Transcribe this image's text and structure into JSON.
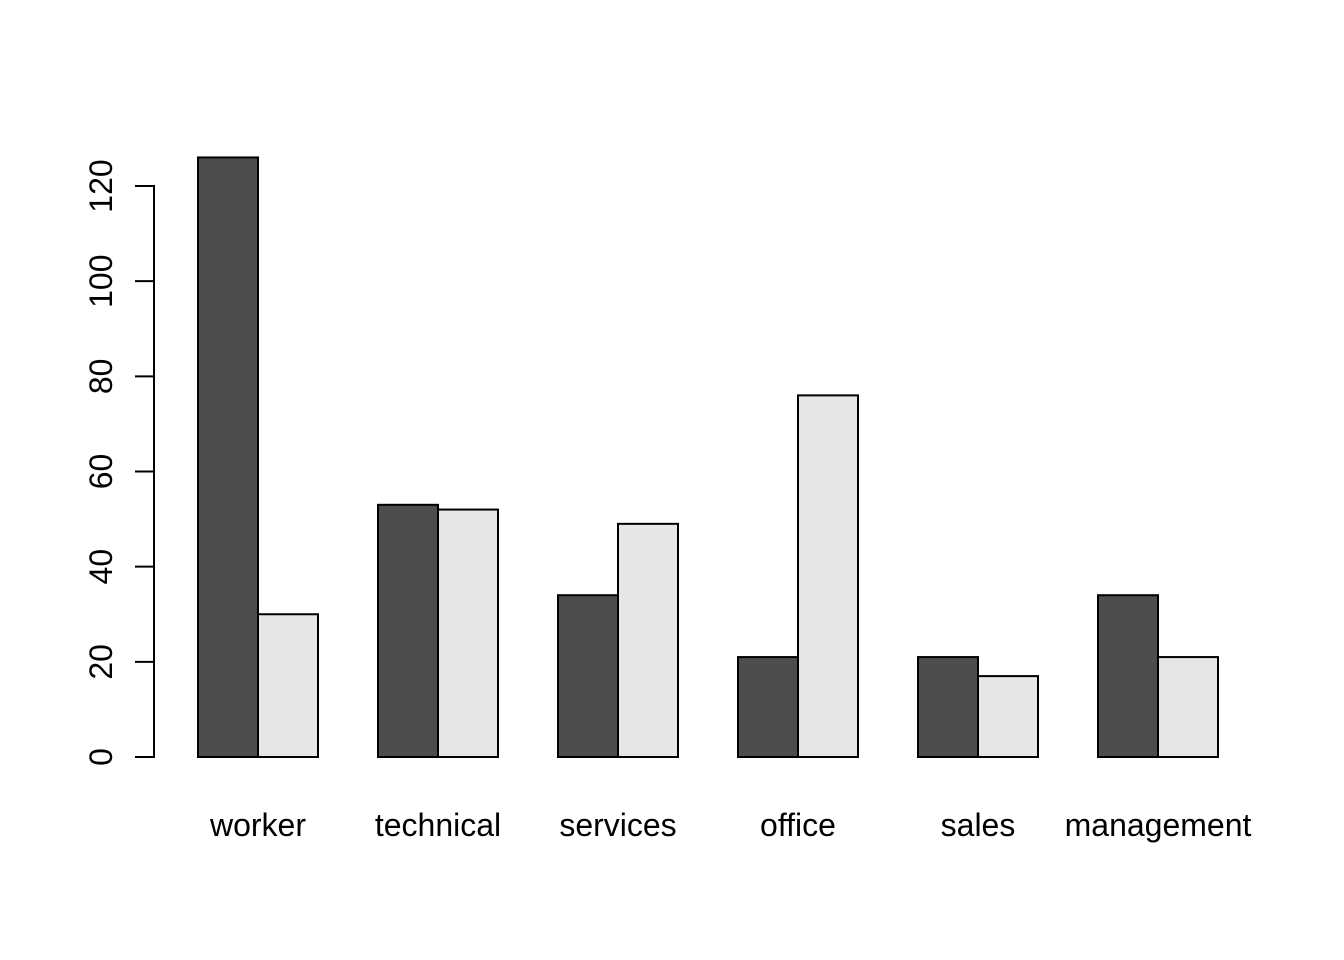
{
  "chart_data": {
    "type": "bar",
    "title": "",
    "xlabel": "",
    "ylabel": "",
    "categories": [
      "worker",
      "technical",
      "services",
      "office",
      "sales",
      "management"
    ],
    "series": [
      {
        "name": "dark-gray",
        "color": "#4D4D4D",
        "values": [
          126,
          53,
          34,
          21,
          21,
          34
        ]
      },
      {
        "name": "light-gray",
        "color": "#E6E6E6",
        "values": [
          30,
          52,
          49,
          76,
          17,
          21
        ]
      }
    ],
    "yticks": [
      0,
      20,
      40,
      60,
      80,
      100,
      120
    ],
    "ylim": [
      0,
      130
    ],
    "grid": false,
    "legend": "none",
    "bar_border_color": "#000000",
    "axis_color": "#000000",
    "text_color": "#000000",
    "background_color": "#FFFFFF"
  }
}
